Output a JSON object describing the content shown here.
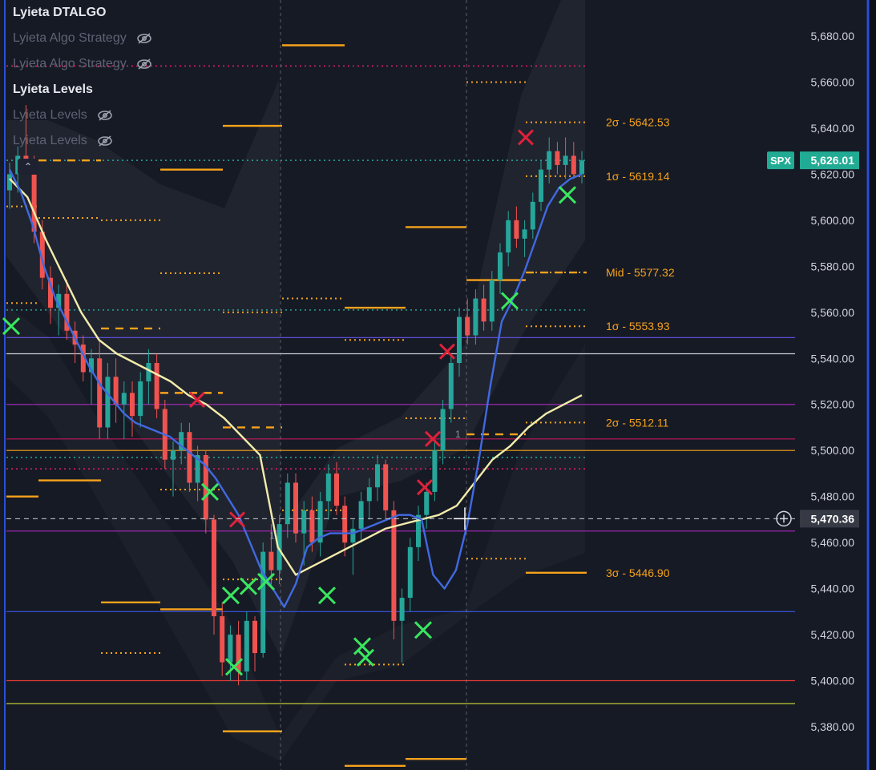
{
  "legend": {
    "title": "Lyieta DTALGO",
    "strategy_1": "Lyieta Algo Strategy",
    "strategy_2": "Lyieta Algo Strategy",
    "levels_title": "Lyieta Levels",
    "levels_1": "Lyieta Levels",
    "levels_2": "Lyieta Levels"
  },
  "icons": {
    "hidden": "eye-slash-icon",
    "collapse": "chevron-up-icon",
    "add": "plus-circle-icon"
  },
  "colors": {
    "background": "#161a25",
    "up": "#26a69a",
    "down": "#ef5350",
    "orange": "#f7a21b",
    "blue_line": "#4169e1",
    "yellow_line": "#f2ecaa",
    "buy_x": "#39e75f",
    "sell_x": "#e0213a",
    "spx_badge": "#22ab94",
    "frame_blue": "#2b4fd8"
  },
  "price_tag": {
    "symbol": "SPX",
    "value": "5,626.01"
  },
  "crosshair_tag": {
    "value": "5,470.36"
  },
  "chart_data": {
    "type": "candlestick",
    "y_axis": {
      "range": [
        5360,
        5695
      ],
      "ticks": [
        5680,
        5660,
        5640,
        5620,
        5600,
        5580,
        5560,
        5540,
        5520,
        5500,
        5480,
        5460,
        5440,
        5420,
        5400,
        5380
      ],
      "tick_labels": [
        "5,680.00",
        "5,660.00",
        "5,640.00",
        "5,620.00",
        "5,600.00",
        "5,580.00",
        "5,560.00",
        "5,540.00",
        "5,520.00",
        "5,500.00",
        "5,480.00",
        "5,460.00",
        "5,440.00",
        "5,420.00",
        "5,400.00",
        "5,380.00"
      ]
    },
    "grid": false,
    "level_labels": [
      {
        "text": "2σ - 5642.53",
        "price": 5642.53
      },
      {
        "text": "1σ - 5619.14",
        "price": 5619.14
      },
      {
        "text": "Mid - 5577.32",
        "price": 5577.32
      },
      {
        "text": "1σ - 5553.93",
        "price": 5553.93
      },
      {
        "text": "2σ - 5512.11",
        "price": 5512.11
      },
      {
        "text": "3σ - 5446.90",
        "price": 5446.9
      }
    ],
    "horizontal_lines": [
      {
        "price": 5549,
        "color": "#5d4fd6"
      },
      {
        "price": 5542,
        "color": "#c9cbd2"
      },
      {
        "price": 5520,
        "color": "#9b27af"
      },
      {
        "price": 5505,
        "color": "#c2185b"
      },
      {
        "price": 5500,
        "color": "#f7a21b"
      },
      {
        "price": 5465,
        "color": "#9b27af"
      },
      {
        "price": 5430,
        "color": "#3b57e6"
      },
      {
        "price": 5400,
        "color": "#e53935"
      },
      {
        "price": 5390,
        "color": "#c0ca33"
      }
    ],
    "dotted_levels": [
      {
        "price": 5667,
        "color": "#e91e63"
      },
      {
        "price": 5626,
        "color": "#26a69a"
      },
      {
        "price": 5561,
        "color": "#26a69a"
      },
      {
        "price": 5497,
        "color": "#26a69a"
      },
      {
        "price": 5492,
        "color": "#e91e63"
      }
    ],
    "session_markers": [
      {
        "label": "1",
        "price": 5463
      },
      {
        "label": "1",
        "price": 5507
      }
    ],
    "candles": [
      [
        5613,
        5625,
        5605,
        5620
      ],
      [
        5620,
        5632,
        5612,
        5628
      ],
      [
        5628,
        5650,
        5620,
        5624
      ],
      [
        5624,
        5628,
        5590,
        5595
      ],
      [
        5595,
        5600,
        5570,
        5575
      ],
      [
        5575,
        5580,
        5555,
        5562
      ],
      [
        5562,
        5572,
        5550,
        5568
      ],
      [
        5568,
        5574,
        5548,
        5552
      ],
      [
        5552,
        5556,
        5538,
        5546
      ],
      [
        5546,
        5550,
        5530,
        5534
      ],
      [
        5534,
        5544,
        5520,
        5540
      ],
      [
        5540,
        5548,
        5505,
        5510
      ],
      [
        5510,
        5538,
        5505,
        5532
      ],
      [
        5532,
        5540,
        5512,
        5520
      ],
      [
        5520,
        5530,
        5505,
        5525
      ],
      [
        5525,
        5530,
        5506,
        5515
      ],
      [
        5515,
        5534,
        5510,
        5530
      ],
      [
        5530,
        5544,
        5520,
        5538
      ],
      [
        5538,
        5542,
        5514,
        5518
      ],
      [
        5518,
        5522,
        5492,
        5496
      ],
      [
        5496,
        5504,
        5480,
        5500
      ],
      [
        5500,
        5512,
        5494,
        5508
      ],
      [
        5508,
        5512,
        5482,
        5486
      ],
      [
        5486,
        5502,
        5478,
        5498
      ],
      [
        5498,
        5500,
        5464,
        5470
      ],
      [
        5470,
        5472,
        5420,
        5428
      ],
      [
        5428,
        5434,
        5402,
        5408
      ],
      [
        5408,
        5424,
        5400,
        5420
      ],
      [
        5420,
        5426,
        5398,
        5404
      ],
      [
        5404,
        5430,
        5400,
        5426
      ],
      [
        5426,
        5428,
        5404,
        5412
      ],
      [
        5412,
        5460,
        5410,
        5456
      ],
      [
        5456,
        5468,
        5440,
        5448
      ],
      [
        5448,
        5472,
        5442,
        5468
      ],
      [
        5468,
        5490,
        5462,
        5486
      ],
      [
        5486,
        5490,
        5460,
        5464
      ],
      [
        5464,
        5478,
        5450,
        5474
      ],
      [
        5474,
        5480,
        5456,
        5460
      ],
      [
        5460,
        5482,
        5454,
        5478
      ],
      [
        5478,
        5494,
        5470,
        5490
      ],
      [
        5490,
        5495,
        5472,
        5476
      ],
      [
        5476,
        5480,
        5454,
        5460
      ],
      [
        5460,
        5470,
        5446,
        5466
      ],
      [
        5466,
        5482,
        5460,
        5478
      ],
      [
        5478,
        5488,
        5470,
        5484
      ],
      [
        5484,
        5498,
        5478,
        5494
      ],
      [
        5494,
        5496,
        5470,
        5474
      ],
      [
        5474,
        5478,
        5418,
        5426
      ],
      [
        5426,
        5440,
        5408,
        5436
      ],
      [
        5436,
        5462,
        5430,
        5458
      ],
      [
        5458,
        5476,
        5452,
        5472
      ],
      [
        5472,
        5486,
        5466,
        5482
      ],
      [
        5482,
        5504,
        5478,
        5500
      ],
      [
        5500,
        5522,
        5494,
        5518
      ],
      [
        5518,
        5542,
        5512,
        5538
      ],
      [
        5538,
        5562,
        5532,
        5558
      ],
      [
        5558,
        5566,
        5546,
        5550
      ],
      [
        5550,
        5570,
        5546,
        5566
      ],
      [
        5566,
        5572,
        5552,
        5556
      ],
      [
        5556,
        5578,
        5552,
        5574
      ],
      [
        5574,
        5590,
        5568,
        5586
      ],
      [
        5586,
        5604,
        5580,
        5600
      ],
      [
        5600,
        5606,
        5588,
        5592
      ],
      [
        5592,
        5600,
        5584,
        5596
      ],
      [
        5596,
        5612,
        5592,
        5608
      ],
      [
        5608,
        5626,
        5604,
        5622
      ],
      [
        5622,
        5636,
        5616,
        5630
      ],
      [
        5630,
        5634,
        5620,
        5624
      ],
      [
        5624,
        5636,
        5618,
        5628
      ],
      [
        5628,
        5634,
        5618,
        5620
      ],
      [
        5620,
        5630,
        5616,
        5626
      ]
    ],
    "blue_line": [
      5622,
      5612,
      5598,
      5580,
      5566,
      5556,
      5546,
      5536,
      5528,
      5522,
      5516,
      5512,
      5510,
      5508,
      5506,
      5502,
      5498,
      5494,
      5488,
      5480,
      5472,
      5460,
      5448,
      5440,
      5432,
      5442,
      5458,
      5462,
      5464,
      5464,
      5464,
      5466,
      5468,
      5470,
      5472,
      5472,
      5470,
      5446,
      5440,
      5448,
      5468,
      5496,
      5528,
      5556,
      5566,
      5578,
      5592,
      5606,
      5614,
      5618,
      5620
    ],
    "yellow_line": [
      5618,
      5610,
      5592,
      5576,
      5560,
      5548,
      5542,
      5538,
      5534,
      5530,
      5524,
      5520,
      5514,
      5506,
      5498,
      5458,
      5446,
      5450,
      5454,
      5458,
      5462,
      5466,
      5468,
      5470,
      5472,
      5476,
      5486,
      5496,
      5502,
      5510,
      5516,
      5520,
      5524
    ],
    "buy_signals": [
      5554,
      5482,
      5437,
      5415,
      5410,
      5406,
      5443,
      5441,
      5437,
      5422,
      5565,
      5611
    ],
    "sell_signals": [
      5636,
      5543,
      5522,
      5505,
      5484,
      5470
    ]
  }
}
